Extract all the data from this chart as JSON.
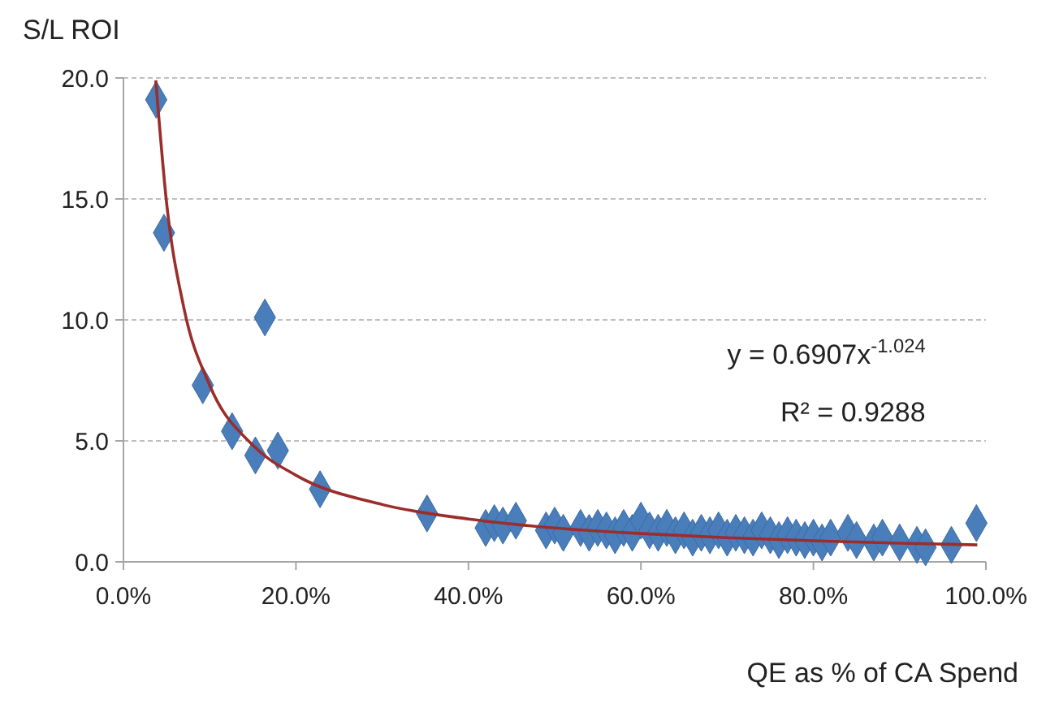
{
  "chart_data": {
    "type": "scatter",
    "xlabel": "QE as % of CA Spend",
    "ylabel": "S/L ROI",
    "xlim": [
      0,
      100
    ],
    "ylim": [
      0,
      20
    ],
    "xticks": [
      {
        "value": 0,
        "label": "0.0%"
      },
      {
        "value": 20,
        "label": "20.0%"
      },
      {
        "value": 40,
        "label": "40.0%"
      },
      {
        "value": 60,
        "label": "60.0%"
      },
      {
        "value": 80,
        "label": "80.0%"
      },
      {
        "value": 100,
        "label": "100.0%"
      }
    ],
    "yticks": [
      {
        "value": 0,
        "label": "0.0"
      },
      {
        "value": 5,
        "label": "5.0"
      },
      {
        "value": 10,
        "label": "10.0"
      },
      {
        "value": 15,
        "label": "15.0"
      },
      {
        "value": 20,
        "label": "20.0"
      }
    ],
    "grid": "y",
    "annotations": [
      "y = 0.6907x$^{-1.024}$",
      "R² = 0.9288"
    ],
    "series": [
      {
        "marker": "diamond",
        "color": "#4a7ebb",
        "x": [
          3.8,
          4.7,
          9.2,
          12.6,
          15.3,
          16.4,
          17.9,
          22.8,
          35.2,
          42,
          43,
          44,
          45.5,
          49,
          50,
          51,
          53,
          54,
          55,
          56,
          57,
          58,
          59,
          60,
          61,
          62,
          63,
          64,
          65,
          66,
          67,
          68,
          69,
          70,
          71,
          72,
          73,
          74,
          75,
          76,
          77,
          78,
          79,
          80,
          81,
          82,
          84,
          85,
          87,
          88,
          90,
          92,
          93,
          96,
          98.9
        ],
        "values": [
          19.1,
          13.6,
          7.3,
          5.4,
          4.4,
          10.1,
          4.6,
          3.0,
          2.0,
          1.4,
          1.6,
          1.5,
          1.7,
          1.3,
          1.5,
          1.2,
          1.4,
          1.2,
          1.4,
          1.3,
          1.1,
          1.4,
          1.2,
          1.7,
          1.3,
          1.2,
          1.4,
          1.1,
          1.3,
          1.0,
          1.2,
          1.1,
          1.3,
          1.0,
          1.2,
          1.1,
          1.0,
          1.3,
          1.1,
          0.9,
          1.1,
          1.0,
          0.9,
          1.0,
          0.8,
          1.0,
          1.2,
          0.9,
          0.8,
          1.0,
          0.8,
          0.7,
          0.6,
          0.7,
          1.6
        ]
      },
      {
        "type": "line",
        "color": "#9b2d2a",
        "x": [
          3.75,
          5,
          7,
          10,
          15,
          20,
          30,
          40,
          50,
          60,
          70,
          80,
          90,
          99
        ],
        "values": [
          19.9,
          14.85,
          10.51,
          7.3,
          4.82,
          3.58,
          2.37,
          1.77,
          1.4,
          1.17,
          1.0,
          0.87,
          0.77,
          0.7
        ]
      }
    ]
  }
}
